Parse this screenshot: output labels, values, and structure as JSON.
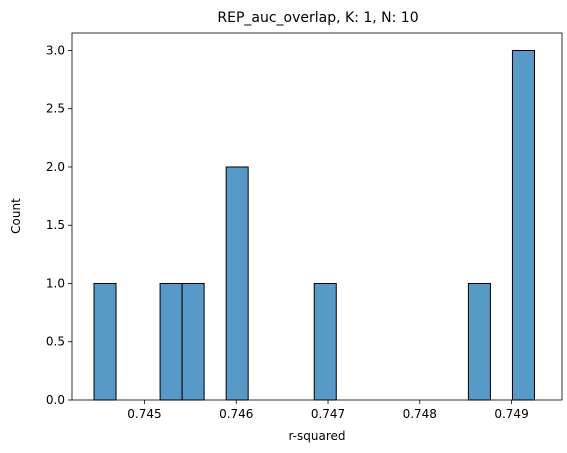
{
  "chart_data": {
    "type": "bar",
    "subtype": "histogram",
    "title": "REP_auc_overlap, K: 1, N: 10",
    "xlabel": "r-squared",
    "ylabel": "Count",
    "xlim": [
      0.74421,
      0.74955
    ],
    "ylim": [
      0.0,
      3.15
    ],
    "xticks": [
      0.745,
      0.746,
      0.747,
      0.748,
      0.749
    ],
    "xtick_labels": [
      "0.745",
      "0.746",
      "0.747",
      "0.748",
      "0.749"
    ],
    "yticks": [
      0.0,
      0.5,
      1.0,
      1.5,
      2.0,
      2.5,
      3.0
    ],
    "ytick_labels": [
      "0.0",
      "0.5",
      "1.0",
      "1.5",
      "2.0",
      "2.5",
      "3.0"
    ],
    "grid": false,
    "bar_color": "#5799c7",
    "edge_color": "#000000",
    "bins": [
      {
        "x0": 0.74445,
        "x1": 0.74469,
        "count": 1
      },
      {
        "x0": 0.74469,
        "x1": 0.74493,
        "count": 0
      },
      {
        "x0": 0.74493,
        "x1": 0.74517,
        "count": 0
      },
      {
        "x0": 0.74517,
        "x1": 0.74541,
        "count": 1
      },
      {
        "x0": 0.74541,
        "x1": 0.74565,
        "count": 1
      },
      {
        "x0": 0.74565,
        "x1": 0.74589,
        "count": 0
      },
      {
        "x0": 0.74589,
        "x1": 0.74613,
        "count": 2
      },
      {
        "x0": 0.74613,
        "x1": 0.74637,
        "count": 0
      },
      {
        "x0": 0.74637,
        "x1": 0.74661,
        "count": 0
      },
      {
        "x0": 0.74661,
        "x1": 0.74685,
        "count": 0
      },
      {
        "x0": 0.74685,
        "x1": 0.74709,
        "count": 1
      },
      {
        "x0": 0.74709,
        "x1": 0.74733,
        "count": 0
      },
      {
        "x0": 0.74733,
        "x1": 0.74757,
        "count": 0
      },
      {
        "x0": 0.74757,
        "x1": 0.74781,
        "count": 0
      },
      {
        "x0": 0.74781,
        "x1": 0.74805,
        "count": 0
      },
      {
        "x0": 0.74805,
        "x1": 0.74829,
        "count": 0
      },
      {
        "x0": 0.74829,
        "x1": 0.74853,
        "count": 0
      },
      {
        "x0": 0.74853,
        "x1": 0.74877,
        "count": 1
      },
      {
        "x0": 0.74877,
        "x1": 0.74901,
        "count": 0
      },
      {
        "x0": 0.74901,
        "x1": 0.74925,
        "count": 3
      }
    ]
  }
}
